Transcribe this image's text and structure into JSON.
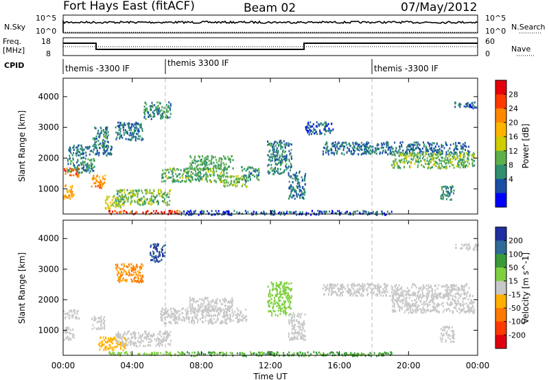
{
  "header": {
    "station": "Fort Hays East (fitACF)",
    "beam": "Beam 02",
    "date": "07/May/2012"
  },
  "top_panels": {
    "nsky": {
      "label": "N.Sky",
      "right_label": "N.Search",
      "left_ticks": [
        "10^5",
        "10^0"
      ],
      "right_ticks": [
        "10^5",
        "10^0"
      ]
    },
    "freq": {
      "label_line1": "Freq.",
      "label_line2": "[MHz]",
      "right_label": "Nave",
      "left_ticks": [
        "18",
        "8"
      ],
      "right_ticks": [
        "60",
        "0"
      ]
    },
    "cpid": {
      "label": "CPID",
      "segments": [
        {
          "text": "themis -3300 IF"
        },
        {
          "text": "themis 3300 IF"
        },
        {
          "text": "themis -3300 IF"
        }
      ]
    }
  },
  "chart_data": [
    {
      "type": "heatmap",
      "name": "power",
      "ylabel": "Slant Range [km]",
      "xlabel": "",
      "xlim": [
        0,
        24
      ],
      "ylim": [
        180,
        4600
      ],
      "x_ticks": [
        "00:00",
        "04:00",
        "08:00",
        "12:00",
        "16:00",
        "20:00",
        "00:00"
      ],
      "y_ticks": [
        1000,
        2000,
        3000,
        4000
      ],
      "colorbar": {
        "label": "Power [dB]",
        "ticks": [
          28,
          24,
          20,
          16,
          12,
          8,
          4
        ],
        "colors": [
          "#e4000a",
          "#ff3a00",
          "#ff8800",
          "#ffb400",
          "#cfcc00",
          "#5fb04a",
          "#2f8f6f",
          "#1b4fa6",
          "#0000ff"
        ]
      },
      "echo_regions": [
        {
          "t0": 0.0,
          "t1": 0.9,
          "r0": 1420,
          "r1": 1700,
          "level": 26
        },
        {
          "t0": 0.0,
          "t1": 0.6,
          "r0": 700,
          "r1": 1150,
          "level": 22
        },
        {
          "t0": 1.6,
          "t1": 2.4,
          "r0": 1050,
          "r1": 1480,
          "level": 24
        },
        {
          "t0": 2.4,
          "t1": 3.5,
          "r0": 380,
          "r1": 800,
          "level": 16
        },
        {
          "t0": 2.6,
          "t1": 6.8,
          "r0": 200,
          "r1": 320,
          "level": 28
        },
        {
          "t0": 0.2,
          "t1": 1.8,
          "r0": 1550,
          "r1": 2050,
          "level": 8
        },
        {
          "t0": 0.3,
          "t1": 2.8,
          "r0": 2100,
          "r1": 2450,
          "level": 6
        },
        {
          "t0": 1.7,
          "t1": 2.6,
          "r0": 2350,
          "r1": 3050,
          "level": 7
        },
        {
          "t0": 3.0,
          "t1": 4.6,
          "r0": 2600,
          "r1": 3200,
          "level": 6
        },
        {
          "t0": 4.6,
          "t1": 6.2,
          "r0": 3300,
          "r1": 3850,
          "level": 8
        },
        {
          "t0": 3.0,
          "t1": 6.2,
          "r0": 500,
          "r1": 1000,
          "level": 12
        },
        {
          "t0": 5.6,
          "t1": 9.5,
          "r0": 1250,
          "r1": 1700,
          "level": 11
        },
        {
          "t0": 7.3,
          "t1": 9.8,
          "r0": 1650,
          "r1": 2100,
          "level": 10
        },
        {
          "t0": 9.2,
          "t1": 10.6,
          "r0": 1100,
          "r1": 1450,
          "level": 13
        },
        {
          "t0": 10.3,
          "t1": 11.3,
          "r0": 1300,
          "r1": 1750,
          "level": 8
        },
        {
          "t0": 11.8,
          "t1": 13.2,
          "r0": 1500,
          "r1": 2600,
          "level": 7
        },
        {
          "t0": 13.0,
          "t1": 14.0,
          "r0": 700,
          "r1": 1600,
          "level": 6
        },
        {
          "t0": 14.0,
          "t1": 15.6,
          "r0": 2800,
          "r1": 3200,
          "level": 5
        },
        {
          "t0": 15.0,
          "t1": 23.5,
          "r0": 2150,
          "r1": 2550,
          "level": 6
        },
        {
          "t0": 19.0,
          "t1": 23.8,
          "r0": 1700,
          "r1": 2200,
          "level": 12
        },
        {
          "t0": 21.8,
          "t1": 22.6,
          "r0": 650,
          "r1": 1150,
          "level": 9
        },
        {
          "t0": 22.6,
          "t1": 24.0,
          "r0": 3650,
          "r1": 3850,
          "level": 5
        },
        {
          "t0": 6.8,
          "t1": 19.0,
          "r0": 180,
          "r1": 320,
          "level": 4
        }
      ]
    },
    {
      "type": "heatmap",
      "name": "velocity",
      "ylabel": "Slant Range [km]",
      "xlabel": "Time UT",
      "xlim": [
        0,
        24
      ],
      "ylim": [
        180,
        4600
      ],
      "x_ticks": [
        "00:00",
        "04:00",
        "08:00",
        "12:00",
        "16:00",
        "20:00",
        "00:00"
      ],
      "y_ticks": [
        1000,
        2000,
        3000,
        4000
      ],
      "colorbar": {
        "label": "Velocity [m s^-1]",
        "ticks": [
          200,
          100,
          50,
          15,
          -15,
          -50,
          -100,
          -200
        ],
        "colors": [
          "#1f2fa0",
          "#2f6a98",
          "#3a9a3a",
          "#7fd040",
          "#c8c8c8",
          "#ffb000",
          "#ff7a00",
          "#ff3a00",
          "#e00010"
        ]
      },
      "echo_regions": [
        {
          "t0": 0.0,
          "t1": 0.9,
          "r0": 1400,
          "r1": 1700,
          "level": 0
        },
        {
          "t0": 0.0,
          "t1": 0.6,
          "r0": 700,
          "r1": 1150,
          "level": 0
        },
        {
          "t0": 1.6,
          "t1": 2.4,
          "r0": 1050,
          "r1": 1480,
          "level": 0
        },
        {
          "t0": 2.0,
          "t1": 3.6,
          "r0": 380,
          "r1": 800,
          "level": -40
        },
        {
          "t0": 2.6,
          "t1": 6.8,
          "r0": 200,
          "r1": 320,
          "level": 40
        },
        {
          "t0": 3.0,
          "t1": 4.6,
          "r0": 2600,
          "r1": 3200,
          "level": -60
        },
        {
          "t0": 5.0,
          "t1": 5.9,
          "r0": 3250,
          "r1": 3850,
          "level": 200
        },
        {
          "t0": 3.0,
          "t1": 6.2,
          "r0": 500,
          "r1": 1000,
          "level": 0
        },
        {
          "t0": 5.6,
          "t1": 10.6,
          "r0": 1250,
          "r1": 1750,
          "level": 0
        },
        {
          "t0": 7.3,
          "t1": 9.8,
          "r0": 1650,
          "r1": 2100,
          "level": 0
        },
        {
          "t0": 11.8,
          "t1": 13.2,
          "r0": 1500,
          "r1": 2600,
          "level": 30
        },
        {
          "t0": 13.0,
          "t1": 14.0,
          "r0": 700,
          "r1": 1600,
          "level": 0
        },
        {
          "t0": 15.0,
          "t1": 23.5,
          "r0": 2150,
          "r1": 2550,
          "level": 0
        },
        {
          "t0": 19.0,
          "t1": 23.8,
          "r0": 1600,
          "r1": 2200,
          "level": 0
        },
        {
          "t0": 21.8,
          "t1": 22.6,
          "r0": 650,
          "r1": 1150,
          "level": 0
        },
        {
          "t0": 22.6,
          "t1": 24.0,
          "r0": 3650,
          "r1": 3850,
          "level": 0
        },
        {
          "t0": 6.8,
          "t1": 19.0,
          "r0": 180,
          "r1": 320,
          "level": 60
        }
      ]
    }
  ]
}
